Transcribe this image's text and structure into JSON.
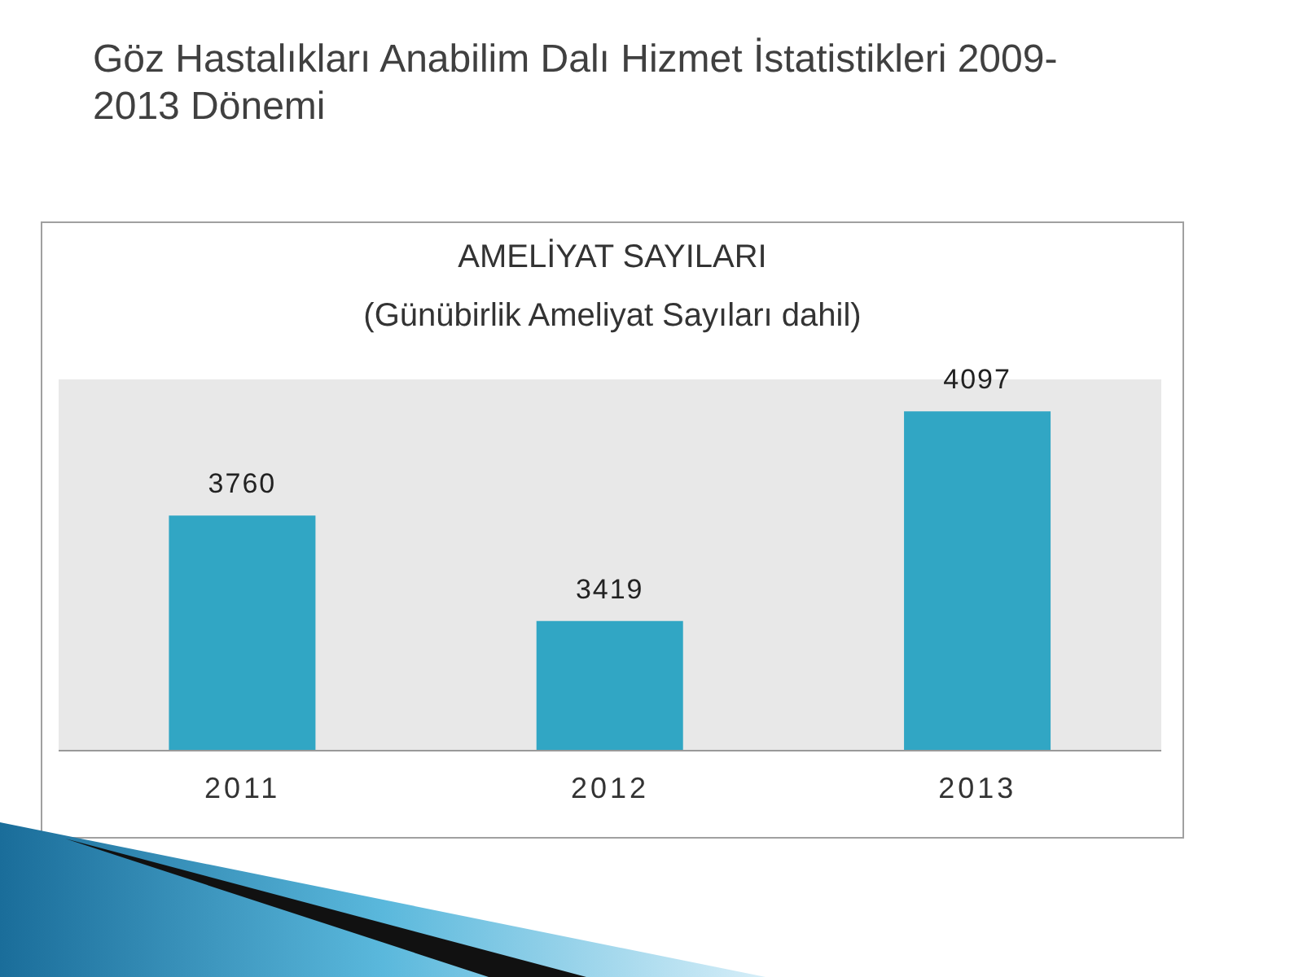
{
  "chart_data": {
    "type": "bar",
    "title": "Göz Hastalıkları Anabilim Dalı Hizmet İstatistikleri 2009-2013 Dönemi",
    "subtitle": "AMELİYAT SAYILARI",
    "annotations": [
      "(Günübirlik Ameliyat Sayıları dahil)"
    ],
    "categories": [
      "2011",
      "2012",
      "2013"
    ],
    "values": [
      3760,
      3419,
      4097
    ],
    "color": "#31a6c4",
    "ylim": [
      3000,
      4200
    ],
    "tick_labels": "x",
    "data_labels": true,
    "grid": false
  }
}
